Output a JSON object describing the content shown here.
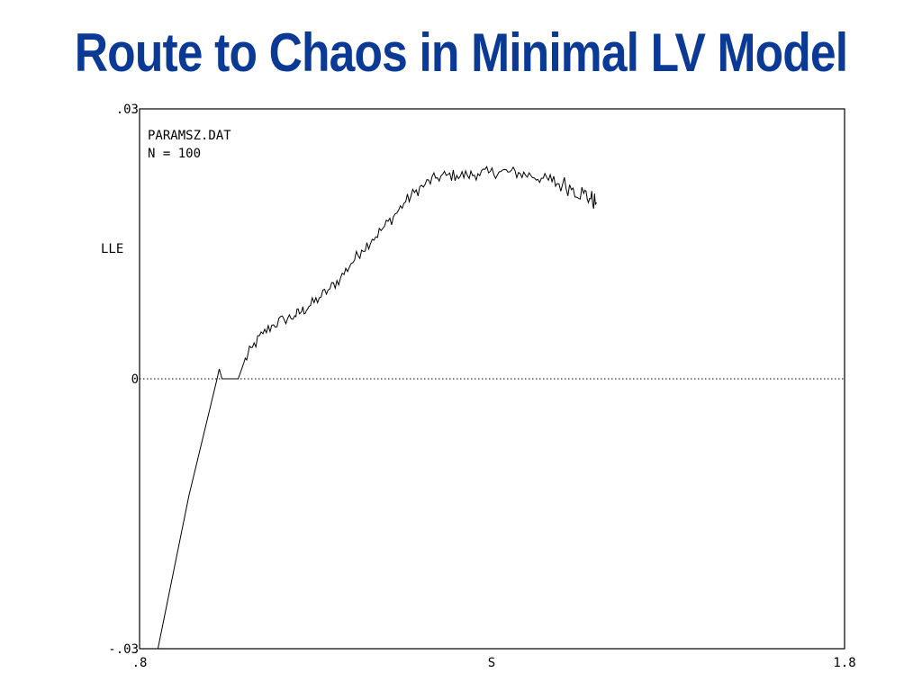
{
  "slide": {
    "title": "Route to Chaos in Minimal LV Model",
    "title_color": "#0a3a96"
  },
  "chart_data": {
    "type": "line",
    "title": "",
    "xlabel": "S",
    "ylabel": "LLE",
    "xlim": [
      0.8,
      1.8
    ],
    "ylim": [
      -0.03,
      0.03
    ],
    "x_ticks": [
      ".8",
      "1.8"
    ],
    "y_ticks": [
      ".03",
      "0",
      "-.03"
    ],
    "annotations": [
      "PARAMSZ.DAT",
      "N = 100"
    ],
    "reference_line": {
      "y": 0,
      "style": "dotted"
    },
    "grid": false,
    "legend": "none",
    "series": [
      {
        "color": "#000000",
        "points": [
          [
            0.826,
            -0.03
          ],
          [
            0.87,
            -0.013
          ],
          [
            0.91,
            0.0
          ],
          [
            0.913,
            0.0011
          ],
          [
            0.917,
            0.0
          ],
          [
            0.935,
            0.0
          ],
          [
            0.94,
            0.0
          ],
          [
            0.948,
            0.0018
          ],
          [
            0.96,
            0.0035
          ],
          [
            0.975,
            0.005
          ],
          [
            0.99,
            0.006
          ],
          [
            1.005,
            0.0066
          ],
          [
            1.02,
            0.007
          ],
          [
            1.03,
            0.0075
          ],
          [
            1.04,
            0.008
          ],
          [
            1.055,
            0.009
          ],
          [
            1.07,
            0.01
          ],
          [
            1.085,
            0.0112
          ],
          [
            1.1,
            0.0128
          ],
          [
            1.115,
            0.0143
          ],
          [
            1.13,
            0.0155
          ],
          [
            1.145,
            0.0167
          ],
          [
            1.16,
            0.018
          ],
          [
            1.175,
            0.0195
          ],
          [
            1.19,
            0.0207
          ],
          [
            1.205,
            0.0216
          ],
          [
            1.22,
            0.0223
          ],
          [
            1.235,
            0.0226
          ],
          [
            1.25,
            0.0226
          ],
          [
            1.265,
            0.0226
          ],
          [
            1.28,
            0.0228
          ],
          [
            1.295,
            0.0229
          ],
          [
            1.31,
            0.023
          ],
          [
            1.325,
            0.023
          ],
          [
            1.34,
            0.0228
          ],
          [
            1.355,
            0.0226
          ],
          [
            1.37,
            0.0223
          ],
          [
            1.385,
            0.0219
          ],
          [
            1.4,
            0.0216
          ],
          [
            1.415,
            0.0212
          ],
          [
            1.43,
            0.0206
          ],
          [
            1.44,
            0.02
          ],
          [
            1.448,
            0.0196
          ]
        ]
      }
    ]
  }
}
